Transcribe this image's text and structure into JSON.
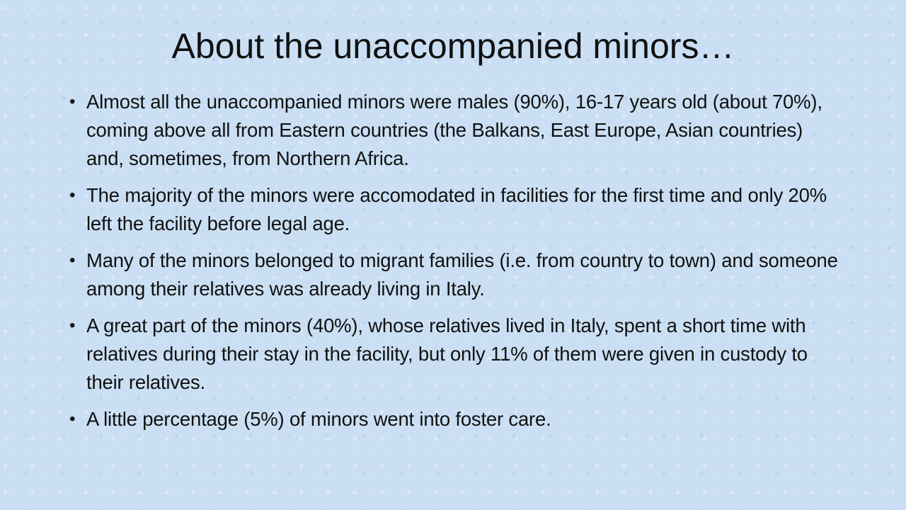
{
  "title": "About the unaccompanied minors…",
  "bullets": [
    "Almost all the unaccompanied minors were males (90%), 16-17 years old (about 70%), coming above all from Eastern countries (the Balkans, East Europe, Asian countries) and, sometimes, from Northern Africa.",
    "The majority of the minors were accomodated in facilities for the first time and only 20% left the facility before legal age.",
    "Many of the minors belonged to migrant families (i.e. from country to town) and someone among their relatives was already living in Italy.",
    "A great part of the minors (40%), whose relatives lived in Italy, spent a short time with relatives during their stay in the facility, but only 11% of them were given in custody to their relatives.",
    "A little percentage (5%) of minors went into foster care."
  ]
}
